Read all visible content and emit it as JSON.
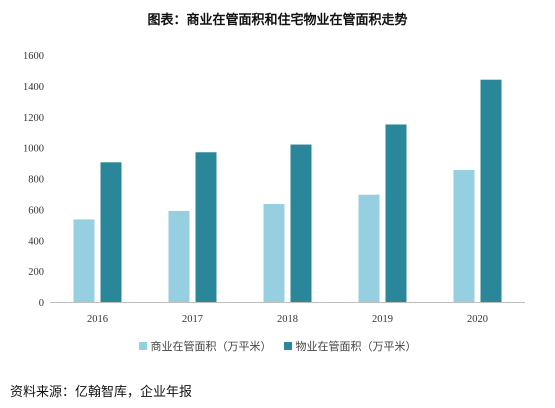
{
  "title": "图表：商业在管面积和住宅物业在管面积走势",
  "source": "资料来源：亿翰智库，企业年报",
  "colors": {
    "commercial": "#96cfe0",
    "residential": "#2a8799"
  },
  "chart_data": {
    "type": "bar",
    "categories": [
      "2016",
      "2017",
      "2018",
      "2019",
      "2020"
    ],
    "series": [
      {
        "name": "商业在管面积（万平米）",
        "values": [
          535,
          590,
          635,
          695,
          855
        ]
      },
      {
        "name": "物业在管面积（万平米）",
        "values": [
          905,
          970,
          1020,
          1150,
          1440
        ]
      }
    ],
    "ylim": [
      0,
      1600
    ],
    "yticks": [
      "0",
      "200",
      "400",
      "600",
      "800",
      "1000",
      "1200",
      "1400",
      "1600"
    ],
    "grid": false,
    "legend": "bottom"
  }
}
